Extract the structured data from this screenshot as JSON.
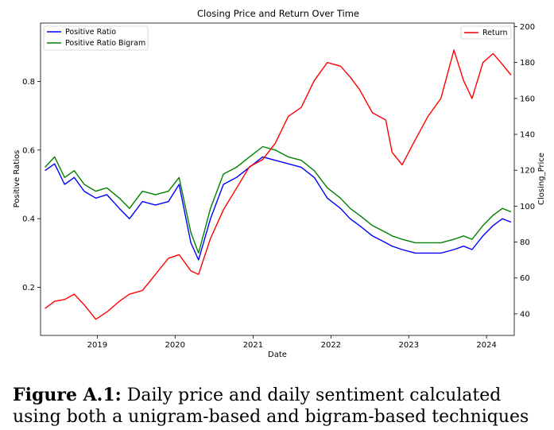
{
  "chart_data": {
    "type": "line",
    "title": "Closing Price and Return Over Time",
    "xlabel": "Date",
    "ylabel": "Positive Ratios",
    "ylabel_right": "Closing_Price",
    "x_ticks": [
      "2019",
      "2020",
      "2021",
      "2022",
      "2023",
      "2024"
    ],
    "xlim": [
      "2018-04-10",
      "2024-05-10"
    ],
    "ylim_left": [
      0.06,
      0.97
    ],
    "y_ticks_left": [
      "0.2",
      "0.4",
      "0.6",
      "0.8"
    ],
    "ylim_right": [
      28,
      202
    ],
    "y_ticks_right": [
      "40",
      "60",
      "80",
      "100",
      "120",
      "140",
      "160",
      "180",
      "200"
    ],
    "legend_left": {
      "placement": "top-left",
      "entries": [
        "Positive Ratio",
        "Positive Ratio Bigram"
      ]
    },
    "legend_right": {
      "placement": "top-right",
      "entries": [
        "Return"
      ]
    },
    "colors": {
      "Positive Ratio": "#0000ff",
      "Positive Ratio Bigram": "#008000",
      "Return": "#ff0000"
    },
    "series": [
      {
        "name": "Return",
        "axis": "right",
        "x": [
          "2018-05-01",
          "2018-06-15",
          "2018-08-01",
          "2018-09-15",
          "2018-11-01",
          "2018-12-25",
          "2019-02-15",
          "2019-04-15",
          "2019-06-01",
          "2019-08-01",
          "2019-10-01",
          "2019-12-01",
          "2020-01-20",
          "2020-03-15",
          "2020-04-20",
          "2020-06-15",
          "2020-08-15",
          "2020-10-15",
          "2020-12-15",
          "2021-02-15",
          "2021-04-15",
          "2021-06-15",
          "2021-08-15",
          "2021-10-15",
          "2021-12-15",
          "2022-02-15",
          "2022-04-01",
          "2022-05-15",
          "2022-07-15",
          "2022-09-15",
          "2022-10-15",
          "2022-12-01",
          "2023-02-01",
          "2023-04-01",
          "2023-06-01",
          "2023-08-01",
          "2023-09-15",
          "2023-10-25",
          "2023-12-15",
          "2024-02-01",
          "2024-03-15",
          "2024-04-25"
        ],
        "values": [
          43,
          47,
          48,
          51,
          45,
          37,
          41,
          47,
          51,
          53,
          62,
          71,
          73,
          64,
          62,
          82,
          98,
          110,
          122,
          126,
          135,
          150,
          155,
          170,
          180,
          178,
          172,
          165,
          152,
          148,
          130,
          123,
          137,
          150,
          160,
          187,
          170,
          160,
          180,
          185,
          179,
          173
        ]
      },
      {
        "name": "Positive Ratio",
        "axis": "left",
        "x": [
          "2018-05-01",
          "2018-06-15",
          "2018-08-01",
          "2018-09-15",
          "2018-11-01",
          "2018-12-25",
          "2019-02-15",
          "2019-04-15",
          "2019-06-01",
          "2019-08-01",
          "2019-10-01",
          "2019-12-01",
          "2020-01-20",
          "2020-03-15",
          "2020-04-20",
          "2020-06-15",
          "2020-08-15",
          "2020-10-15",
          "2020-12-15",
          "2021-02-15",
          "2021-04-15",
          "2021-06-15",
          "2021-08-15",
          "2021-10-15",
          "2021-12-15",
          "2022-02-15",
          "2022-04-01",
          "2022-05-15",
          "2022-07-15",
          "2022-09-15",
          "2022-10-15",
          "2022-12-01",
          "2023-02-01",
          "2023-04-01",
          "2023-06-01",
          "2023-08-01",
          "2023-09-15",
          "2023-10-25",
          "2023-12-15",
          "2024-02-01",
          "2024-03-15",
          "2024-04-25"
        ],
        "values": [
          0.54,
          0.56,
          0.5,
          0.52,
          0.48,
          0.46,
          0.47,
          0.43,
          0.4,
          0.45,
          0.44,
          0.45,
          0.5,
          0.33,
          0.28,
          0.4,
          0.5,
          0.52,
          0.55,
          0.58,
          0.57,
          0.56,
          0.55,
          0.52,
          0.46,
          0.43,
          0.4,
          0.38,
          0.35,
          0.33,
          0.32,
          0.31,
          0.3,
          0.3,
          0.3,
          0.31,
          0.32,
          0.31,
          0.35,
          0.38,
          0.4,
          0.39
        ]
      },
      {
        "name": "Positive Ratio Bigram",
        "axis": "left",
        "x": [
          "2018-05-01",
          "2018-06-15",
          "2018-08-01",
          "2018-09-15",
          "2018-11-01",
          "2018-12-25",
          "2019-02-15",
          "2019-04-15",
          "2019-06-01",
          "2019-08-01",
          "2019-10-01",
          "2019-12-01",
          "2020-01-20",
          "2020-03-15",
          "2020-04-20",
          "2020-06-15",
          "2020-08-15",
          "2020-10-15",
          "2020-12-15",
          "2021-02-15",
          "2021-04-15",
          "2021-06-15",
          "2021-08-15",
          "2021-10-15",
          "2021-12-15",
          "2022-02-15",
          "2022-04-01",
          "2022-05-15",
          "2022-07-15",
          "2022-09-15",
          "2022-10-15",
          "2022-12-01",
          "2023-02-01",
          "2023-04-01",
          "2023-06-01",
          "2023-08-01",
          "2023-09-15",
          "2023-10-25",
          "2023-12-15",
          "2024-02-01",
          "2024-03-15",
          "2024-04-25"
        ],
        "values": [
          0.55,
          0.58,
          0.52,
          0.54,
          0.5,
          0.48,
          0.49,
          0.46,
          0.43,
          0.48,
          0.47,
          0.48,
          0.52,
          0.36,
          0.3,
          0.43,
          0.53,
          0.55,
          0.58,
          0.61,
          0.6,
          0.58,
          0.57,
          0.54,
          0.49,
          0.46,
          0.43,
          0.41,
          0.38,
          0.36,
          0.35,
          0.34,
          0.33,
          0.33,
          0.33,
          0.34,
          0.35,
          0.34,
          0.38,
          0.41,
          0.43,
          0.42
        ]
      }
    ]
  },
  "caption": {
    "label": "Figure A.1:",
    "text": "Daily price and daily sentiment calculated using both a unigram-based and bigram-based techniques"
  }
}
